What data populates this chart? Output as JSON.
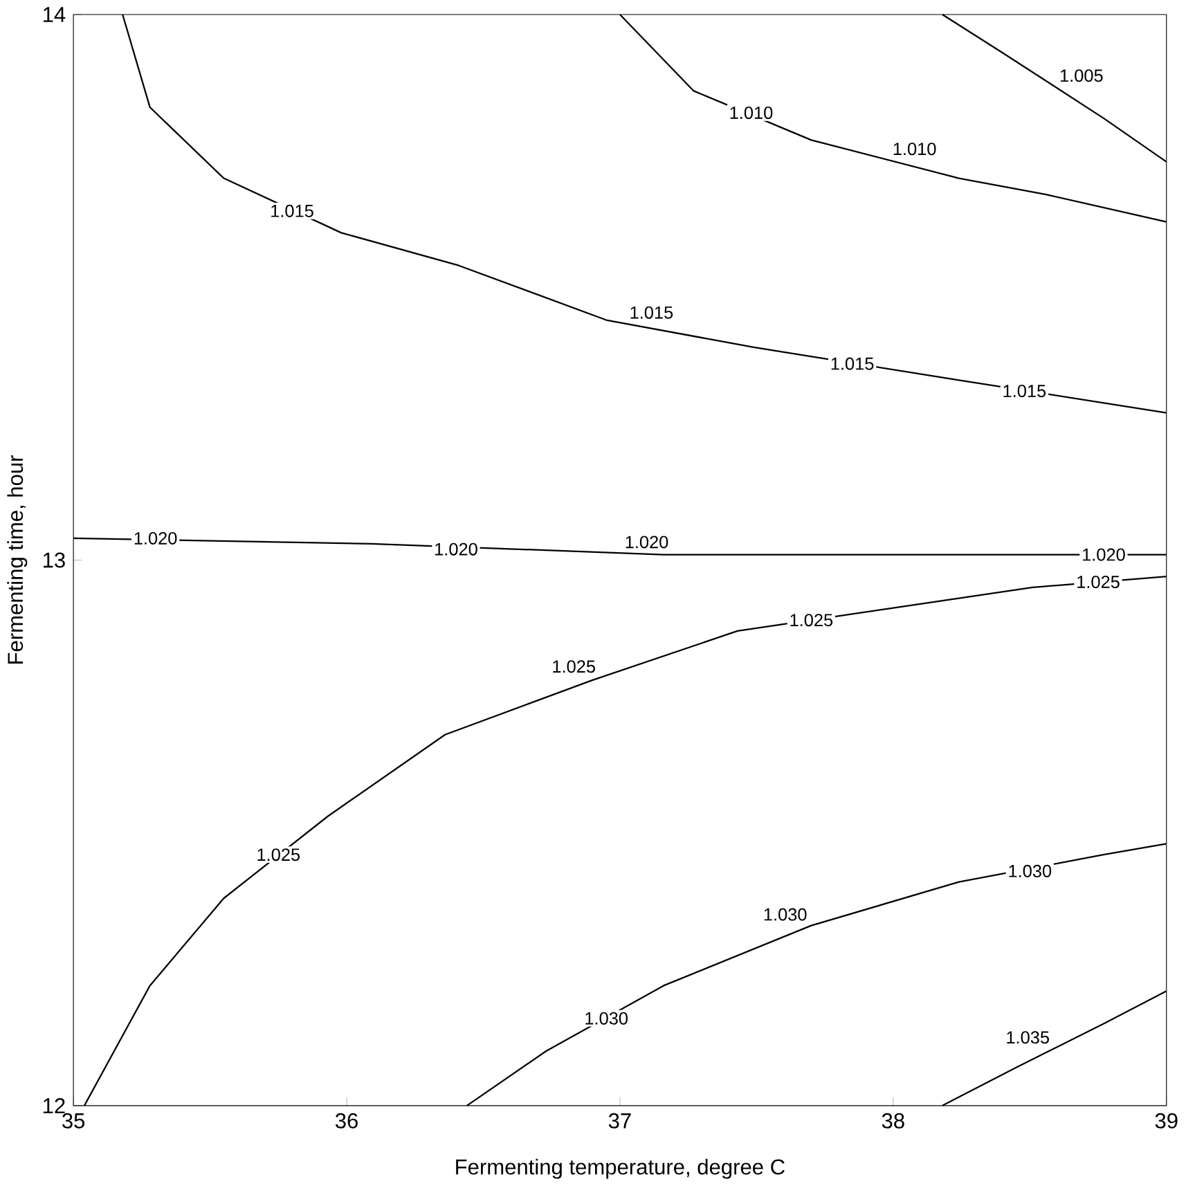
{
  "chart_data": {
    "type": "line",
    "xlabel": "Fermenting temperature, degree C",
    "ylabel": "Fermenting time, hour",
    "xlim": [
      35,
      39
    ],
    "ylim": [
      12,
      14
    ],
    "xticks": [
      35,
      36,
      37,
      38,
      39
    ],
    "yticks": [
      12,
      13,
      14
    ],
    "grid": false,
    "legend": false,
    "marker": "none",
    "line_style": "solid",
    "series": [
      {
        "name": "1.005",
        "color": "#000000",
        "x": [
          38.18,
          38.4,
          38.77,
          39
        ],
        "values": [
          14,
          13.93,
          13.81,
          13.73
        ]
      },
      {
        "name": "1.010",
        "color": "#000000",
        "x": [
          37.0,
          37.27,
          37.7,
          38.24,
          38.56,
          39
        ],
        "values": [
          14,
          13.86,
          13.77,
          13.7,
          13.67,
          13.62
        ]
      },
      {
        "name": "1.015",
        "color": "#000000",
        "x": [
          35.18,
          35.28,
          35.55,
          35.98,
          36.41,
          36.95,
          37.49,
          38.24,
          39
        ],
        "values": [
          14,
          13.83,
          13.7,
          13.6,
          13.54,
          13.44,
          13.39,
          13.33,
          13.27
        ]
      },
      {
        "name": "1.020",
        "color": "#000000",
        "x": [
          35,
          36.09,
          37.16,
          38.24,
          39
        ],
        "values": [
          13.04,
          13.03,
          13.01,
          13.01,
          13.01
        ]
      },
      {
        "name": "1.025",
        "color": "#000000",
        "x": [
          35.04,
          35.28,
          35.55,
          35.93,
          36.36,
          36.9,
          37.43,
          37.97,
          38.51,
          39
        ],
        "values": [
          12.0,
          12.22,
          12.38,
          12.53,
          12.68,
          12.78,
          12.87,
          12.91,
          12.95,
          12.97
        ]
      },
      {
        "name": "1.030",
        "color": "#000000",
        "x": [
          36.44,
          36.73,
          37.16,
          37.7,
          38.24,
          38.77,
          39
        ],
        "values": [
          12.0,
          12.1,
          12.22,
          12.33,
          12.41,
          12.46,
          12.48
        ]
      },
      {
        "name": "1.035",
        "color": "#000000",
        "x": [
          38.18,
          38.45,
          38.77,
          39
        ],
        "values": [
          12.0,
          12.07,
          12.15,
          12.21
        ]
      }
    ],
    "annotations": [
      {
        "text": "1.010",
        "x": 37.48,
        "y": 13.82
      },
      {
        "text": "1.015",
        "x": 35.8,
        "y": 13.64
      },
      {
        "text": "1.015",
        "x": 37.85,
        "y": 13.36
      },
      {
        "text": "1.015",
        "x": 38.48,
        "y": 13.31
      },
      {
        "text": "1.020",
        "x": 35.3,
        "y": 13.04
      },
      {
        "text": "1.020",
        "x": 36.4,
        "y": 13.02
      },
      {
        "text": "1.020",
        "x": 38.77,
        "y": 13.01
      },
      {
        "text": "1.025",
        "x": 35.75,
        "y": 12.46
      },
      {
        "text": "1.025",
        "x": 37.7,
        "y": 12.89
      },
      {
        "text": "1.025",
        "x": 38.75,
        "y": 12.96
      },
      {
        "text": "1.030",
        "x": 36.95,
        "y": 12.16
      },
      {
        "text": "1.030",
        "x": 38.5,
        "y": 12.43
      }
    ]
  }
}
